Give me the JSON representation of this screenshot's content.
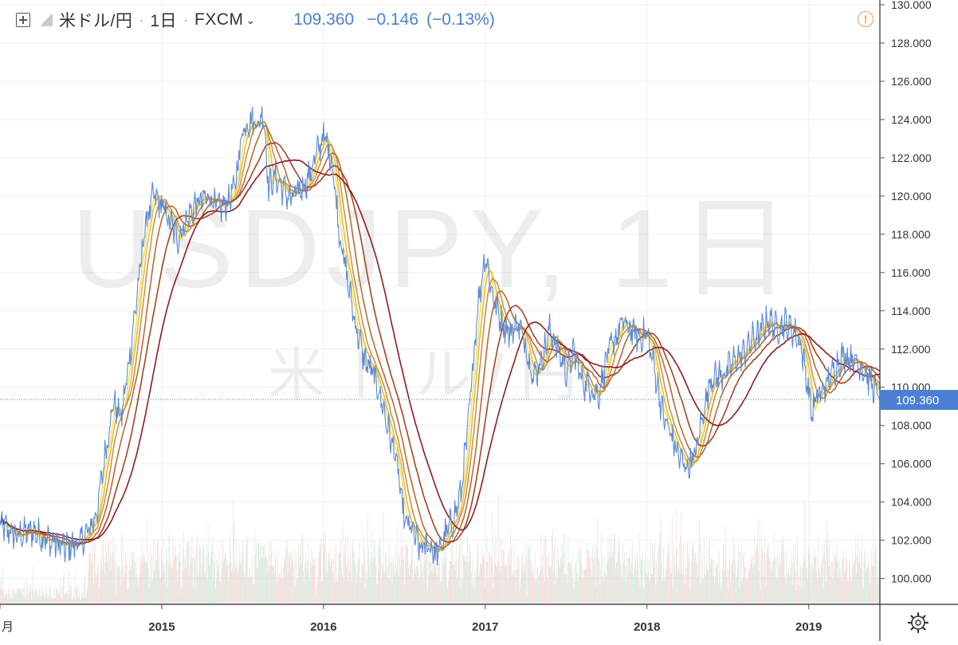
{
  "header": {
    "symbol_name": "米ドル/円",
    "separator": "·",
    "interval": "1日",
    "exchange": "FXCM",
    "last_price": "109.360",
    "change": "−0.146",
    "change_pct": "(−0.13%)"
  },
  "watermark": {
    "line1": "USDJPY, 1日",
    "line2": "米ドル/円"
  },
  "colors": {
    "price_line": "#5b8ad9",
    "accent_blue": "#4a7fd4",
    "ribbon_start": "#f7e35a",
    "ribbon_end": "#8e1c1c",
    "alert": "#f29a54",
    "volume": "#b9d9c2"
  },
  "icons": {
    "toggle": "plus-box-icon",
    "flag": "flag-icon",
    "alert": "exclamation-circle-icon",
    "settings": "gear-icon"
  },
  "axis": {
    "y_ticks": [
      "130.000",
      "128.000",
      "126.000",
      "124.000",
      "122.000",
      "120.000",
      "118.000",
      "116.000",
      "114.000",
      "112.000",
      "110.000",
      "108.000",
      "106.000",
      "104.000",
      "102.000",
      "100.000"
    ],
    "x_ticks": [
      "月",
      "2015",
      "2016",
      "2017",
      "2018",
      "2019"
    ],
    "price_label": "109.360"
  },
  "chart_data": {
    "type": "line",
    "title": "",
    "xlabel": "",
    "ylabel": "",
    "ylim": [
      98.9,
      130.0
    ],
    "xlim": [
      2014.0,
      2019.44
    ],
    "grid": true,
    "last_value": 109.36,
    "price_series": {
      "x": [
        2014.0,
        2014.1,
        2014.2,
        2014.3,
        2014.4,
        2014.5,
        2014.55,
        2014.6,
        2014.65,
        2014.7,
        2014.75,
        2014.8,
        2014.85,
        2014.9,
        2014.95,
        2015.0,
        2015.1,
        2015.2,
        2015.3,
        2015.35,
        2015.4,
        2015.45,
        2015.5,
        2015.55,
        2015.6,
        2015.63,
        2015.66,
        2015.7,
        2015.8,
        2015.9,
        2016.0,
        2016.05,
        2016.1,
        2016.15,
        2016.2,
        2016.25,
        2016.3,
        2016.35,
        2016.4,
        2016.45,
        2016.5,
        2016.55,
        2016.6,
        2016.65,
        2016.7,
        2016.75,
        2016.8,
        2016.85,
        2016.9,
        2016.95,
        2017.0,
        2017.05,
        2017.1,
        2017.15,
        2017.2,
        2017.25,
        2017.3,
        2017.35,
        2017.4,
        2017.45,
        2017.5,
        2017.55,
        2017.6,
        2017.65,
        2017.7,
        2017.75,
        2017.8,
        2017.85,
        2017.9,
        2017.95,
        2018.0,
        2018.05,
        2018.1,
        2018.15,
        2018.2,
        2018.25,
        2018.3,
        2018.35,
        2018.4,
        2018.45,
        2018.5,
        2018.55,
        2018.6,
        2018.65,
        2018.7,
        2018.75,
        2018.8,
        2018.85,
        2018.9,
        2018.95,
        2019.0,
        2019.02,
        2019.05,
        2019.1,
        2019.15,
        2019.2,
        2019.25,
        2019.3,
        2019.35,
        2019.4,
        2019.44
      ],
      "values": [
        102.8,
        102.2,
        102.5,
        102.0,
        101.6,
        101.9,
        102.5,
        103.5,
        106.5,
        109.2,
        108.4,
        111.5,
        115.0,
        118.6,
        120.0,
        119.5,
        117.8,
        119.5,
        120.0,
        119.3,
        119.6,
        120.4,
        123.5,
        124.0,
        123.8,
        124.4,
        120.5,
        121.0,
        119.8,
        120.8,
        123.2,
        122.0,
        118.0,
        115.5,
        113.2,
        111.5,
        110.8,
        109.6,
        107.8,
        106.2,
        103.0,
        102.5,
        101.5,
        101.8,
        101.2,
        102.2,
        103.0,
        104.5,
        108.5,
        114.0,
        117.0,
        114.6,
        113.5,
        112.8,
        113.4,
        112.2,
        110.5,
        111.5,
        113.0,
        112.0,
        110.8,
        111.8,
        110.3,
        110.0,
        109.6,
        111.5,
        112.5,
        113.4,
        113.0,
        112.6,
        112.8,
        110.8,
        108.5,
        107.5,
        106.3,
        105.8,
        106.5,
        108.8,
        110.6,
        110.6,
        110.9,
        111.5,
        111.8,
        112.5,
        112.8,
        113.6,
        113.1,
        113.4,
        113.0,
        112.3,
        109.8,
        108.5,
        109.5,
        110.0,
        110.8,
        111.6,
        111.6,
        111.3,
        110.8,
        110.0,
        109.36
      ]
    },
    "ribbon_periods": [
      8,
      13,
      21,
      34,
      55,
      89
    ],
    "volume": "present"
  }
}
